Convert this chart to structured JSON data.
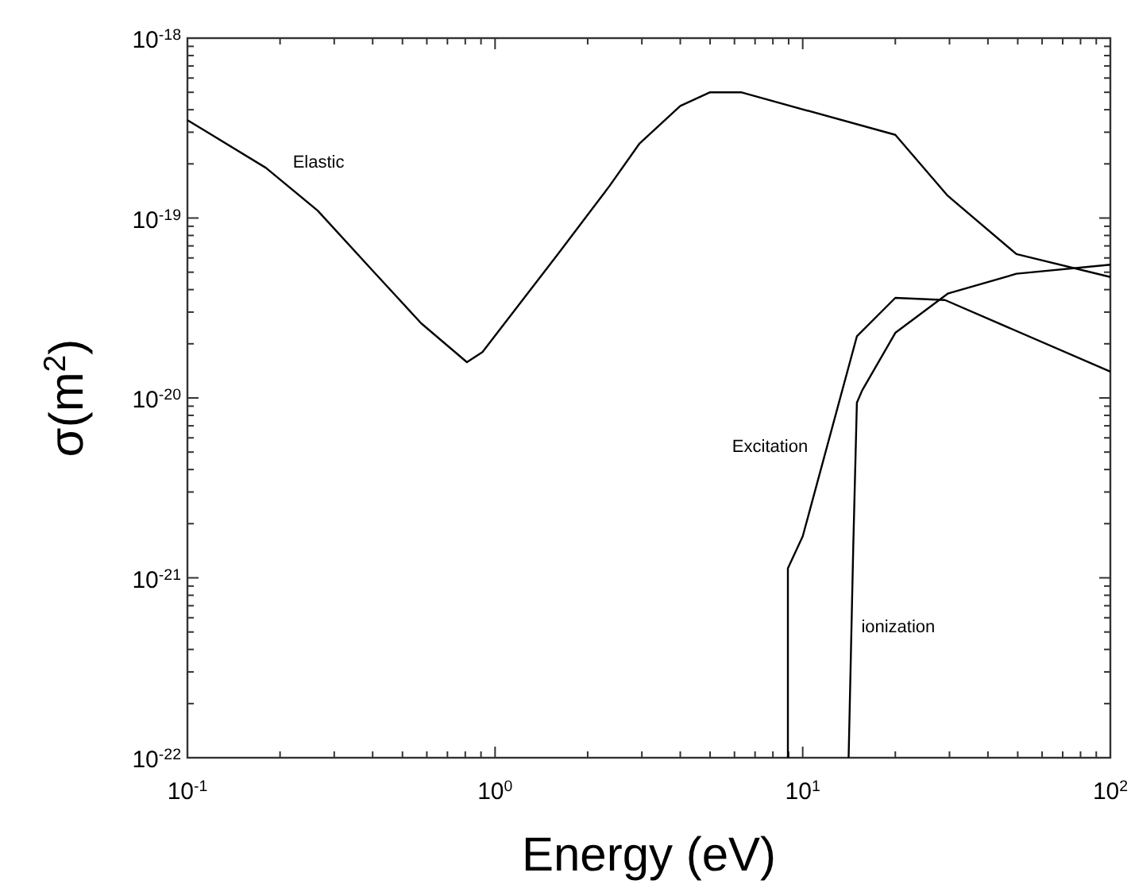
{
  "chart_data": {
    "type": "line",
    "xlabel": "Energy (eV)",
    "ylabel": "σ(m$^{2}$)",
    "log": "xy",
    "xlim": [
      0.1,
      100
    ],
    "ylim": [
      1e-22,
      1e-18
    ],
    "xticks": [
      {
        "value": 0.1,
        "label": "10$^{-1}$"
      },
      {
        "value": 0.2,
        "label": null
      },
      {
        "value": 0.3,
        "label": null
      },
      {
        "value": 0.4,
        "label": null
      },
      {
        "value": 0.5,
        "label": null
      },
      {
        "value": 0.6,
        "label": null
      },
      {
        "value": 0.7,
        "label": null
      },
      {
        "value": 0.8,
        "label": null
      },
      {
        "value": 0.9,
        "label": null
      },
      {
        "value": 1,
        "label": "10$^{0}$"
      },
      {
        "value": 2,
        "label": null
      },
      {
        "value": 3,
        "label": null
      },
      {
        "value": 4,
        "label": null
      },
      {
        "value": 5,
        "label": null
      },
      {
        "value": 6,
        "label": null
      },
      {
        "value": 7,
        "label": null
      },
      {
        "value": 8,
        "label": null
      },
      {
        "value": 9,
        "label": null
      },
      {
        "value": 10,
        "label": "10$^{1}$"
      },
      {
        "value": 20,
        "label": null
      },
      {
        "value": 30,
        "label": null
      },
      {
        "value": 40,
        "label": null
      },
      {
        "value": 50,
        "label": null
      },
      {
        "value": 60,
        "label": null
      },
      {
        "value": 70,
        "label": null
      },
      {
        "value": 80,
        "label": null
      },
      {
        "value": 90,
        "label": null
      },
      {
        "value": 100,
        "label": "10$^{2}$"
      }
    ],
    "yticks": [
      {
        "value": 1e-22,
        "label": "10$^{-22}$"
      },
      {
        "value": 2e-22,
        "label": null
      },
      {
        "value": 3e-22,
        "label": null
      },
      {
        "value": 4e-22,
        "label": null
      },
      {
        "value": 5e-22,
        "label": null
      },
      {
        "value": 6e-22,
        "label": null
      },
      {
        "value": 7e-22,
        "label": null
      },
      {
        "value": 8e-22,
        "label": null
      },
      {
        "value": 9e-22,
        "label": null
      },
      {
        "value": 1e-21,
        "label": "10$^{-21}$"
      },
      {
        "value": 2e-21,
        "label": null
      },
      {
        "value": 3e-21,
        "label": null
      },
      {
        "value": 4e-21,
        "label": null
      },
      {
        "value": 5e-21,
        "label": null
      },
      {
        "value": 6e-21,
        "label": null
      },
      {
        "value": 7e-21,
        "label": null
      },
      {
        "value": 8e-21,
        "label": null
      },
      {
        "value": 9e-21,
        "label": null
      },
      {
        "value": 1e-20,
        "label": "10$^{-20}$"
      },
      {
        "value": 2e-20,
        "label": null
      },
      {
        "value": 3e-20,
        "label": null
      },
      {
        "value": 4e-20,
        "label": null
      },
      {
        "value": 5e-20,
        "label": null
      },
      {
        "value": 6e-20,
        "label": null
      },
      {
        "value": 7e-20,
        "label": null
      },
      {
        "value": 8e-20,
        "label": null
      },
      {
        "value": 9e-20,
        "label": null
      },
      {
        "value": 1e-19,
        "label": "10$^{-19}$"
      },
      {
        "value": 2e-19,
        "label": null
      },
      {
        "value": 3e-19,
        "label": null
      },
      {
        "value": 4e-19,
        "label": null
      },
      {
        "value": 5e-19,
        "label": null
      },
      {
        "value": 6e-19,
        "label": null
      },
      {
        "value": 7e-19,
        "label": null
      },
      {
        "value": 8e-19,
        "label": null
      },
      {
        "value": 9e-19,
        "label": null
      },
      {
        "value": 1e-18,
        "label": "10$^{-18}$"
      }
    ],
    "grid": false,
    "legend": false,
    "marker": "none",
    "line_style": "solid",
    "series": [
      {
        "name": "Elastic",
        "color": "#000000",
        "x": [
          0.1,
          0.18,
          0.265,
          0.4,
          0.575,
          0.81,
          0.91,
          1.6,
          2.35,
          2.95,
          4.0,
          5.0,
          6.3,
          20,
          29.6,
          49.5,
          100
        ],
        "values": [
          3.5e-19,
          1.9e-19,
          1.1e-19,
          5.1e-20,
          2.6e-20,
          1.58e-20,
          1.8e-20,
          6.3e-20,
          1.5e-19,
          2.6e-19,
          4.2e-19,
          5e-19,
          5e-19,
          2.9e-19,
          1.33e-19,
          6.3e-20,
          4.7e-20
        ]
      },
      {
        "name": "Excitation",
        "color": "#000000",
        "x": [
          8.95,
          8.95,
          10,
          15,
          20,
          29,
          100
        ],
        "values": [
          1e-22,
          1.13e-21,
          1.7e-21,
          2.2e-20,
          3.6e-20,
          3.5e-20,
          1.4e-20
        ]
      },
      {
        "name": "ionization",
        "color": "#000000",
        "x": [
          14.1,
          14.6,
          15,
          15.6,
          20,
          29.6,
          49.5,
          100
        ],
        "values": [
          1e-22,
          1.5e-21,
          9.4e-21,
          1.1e-20,
          2.3e-20,
          3.8e-20,
          4.9e-20,
          5.5e-20
        ]
      }
    ]
  }
}
